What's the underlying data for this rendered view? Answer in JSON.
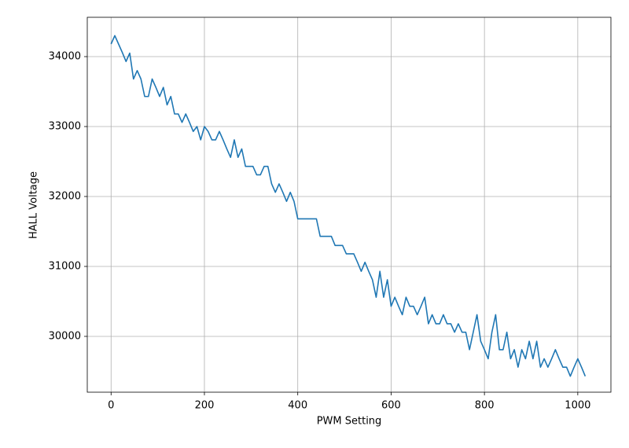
{
  "chart_data": {
    "type": "line",
    "xlabel": "PWM Setting",
    "ylabel": "HALL Voltage",
    "color": "#1f77b4",
    "grid": true,
    "xlim": [
      -51,
      1071
    ],
    "ylim": [
      29202,
      34562
    ],
    "xticks": [
      0,
      200,
      400,
      600,
      800,
      1000
    ],
    "yticks": [
      30000,
      31000,
      32000,
      33000,
      34000
    ],
    "x": [
      0,
      8,
      16,
      24,
      32,
      40,
      48,
      56,
      64,
      72,
      80,
      88,
      96,
      104,
      112,
      120,
      128,
      136,
      144,
      152,
      160,
      168,
      176,
      184,
      192,
      200,
      208,
      216,
      224,
      232,
      240,
      248,
      256,
      264,
      272,
      280,
      288,
      296,
      304,
      312,
      320,
      328,
      336,
      344,
      352,
      360,
      368,
      376,
      384,
      392,
      400,
      408,
      416,
      424,
      432,
      440,
      448,
      456,
      464,
      472,
      480,
      488,
      496,
      504,
      512,
      520,
      528,
      536,
      544,
      552,
      560,
      568,
      576,
      584,
      592,
      600,
      608,
      616,
      624,
      632,
      640,
      648,
      656,
      664,
      672,
      680,
      688,
      696,
      704,
      712,
      720,
      728,
      736,
      744,
      752,
      760,
      768,
      776,
      784,
      792,
      800,
      808,
      816,
      824,
      832,
      840,
      848,
      856,
      864,
      872,
      880,
      888,
      896,
      904,
      912,
      920,
      928,
      936,
      944,
      952,
      960,
      968,
      976,
      984,
      992,
      1000,
      1008,
      1016
    ],
    "values": [
      34180,
      34300,
      34180,
      34060,
      33930,
      34050,
      33680,
      33800,
      33680,
      33430,
      33430,
      33680,
      33560,
      33430,
      33560,
      33310,
      33430,
      33180,
      33180,
      33060,
      33180,
      33060,
      32930,
      33000,
      32810,
      33000,
      32930,
      32810,
      32810,
      32930,
      32810,
      32680,
      32560,
      32810,
      32560,
      32680,
      32430,
      32430,
      32430,
      32310,
      32310,
      32430,
      32430,
      32180,
      32060,
      32180,
      32060,
      31930,
      32060,
      31930,
      31680,
      31680,
      31680,
      31680,
      31680,
      31680,
      31430,
      31430,
      31430,
      31430,
      31300,
      31300,
      31300,
      31180,
      31180,
      31180,
      31060,
      30930,
      31060,
      30930,
      30810,
      30560,
      30930,
      30560,
      30810,
      30430,
      30560,
      30430,
      30310,
      30560,
      30430,
      30430,
      30310,
      30430,
      30560,
      30180,
      30310,
      30180,
      30180,
      30310,
      30180,
      30180,
      30060,
      30180,
      30060,
      30060,
      29810,
      30060,
      30310,
      29930,
      29810,
      29680,
      30060,
      30310,
      29810,
      29810,
      30060,
      29680,
      29810,
      29560,
      29810,
      29680,
      29930,
      29680,
      29930,
      29560,
      29680,
      29560,
      29680,
      29810,
      29680,
      29560,
      29560,
      29430,
      29560,
      29680,
      29560,
      29430
    ]
  }
}
